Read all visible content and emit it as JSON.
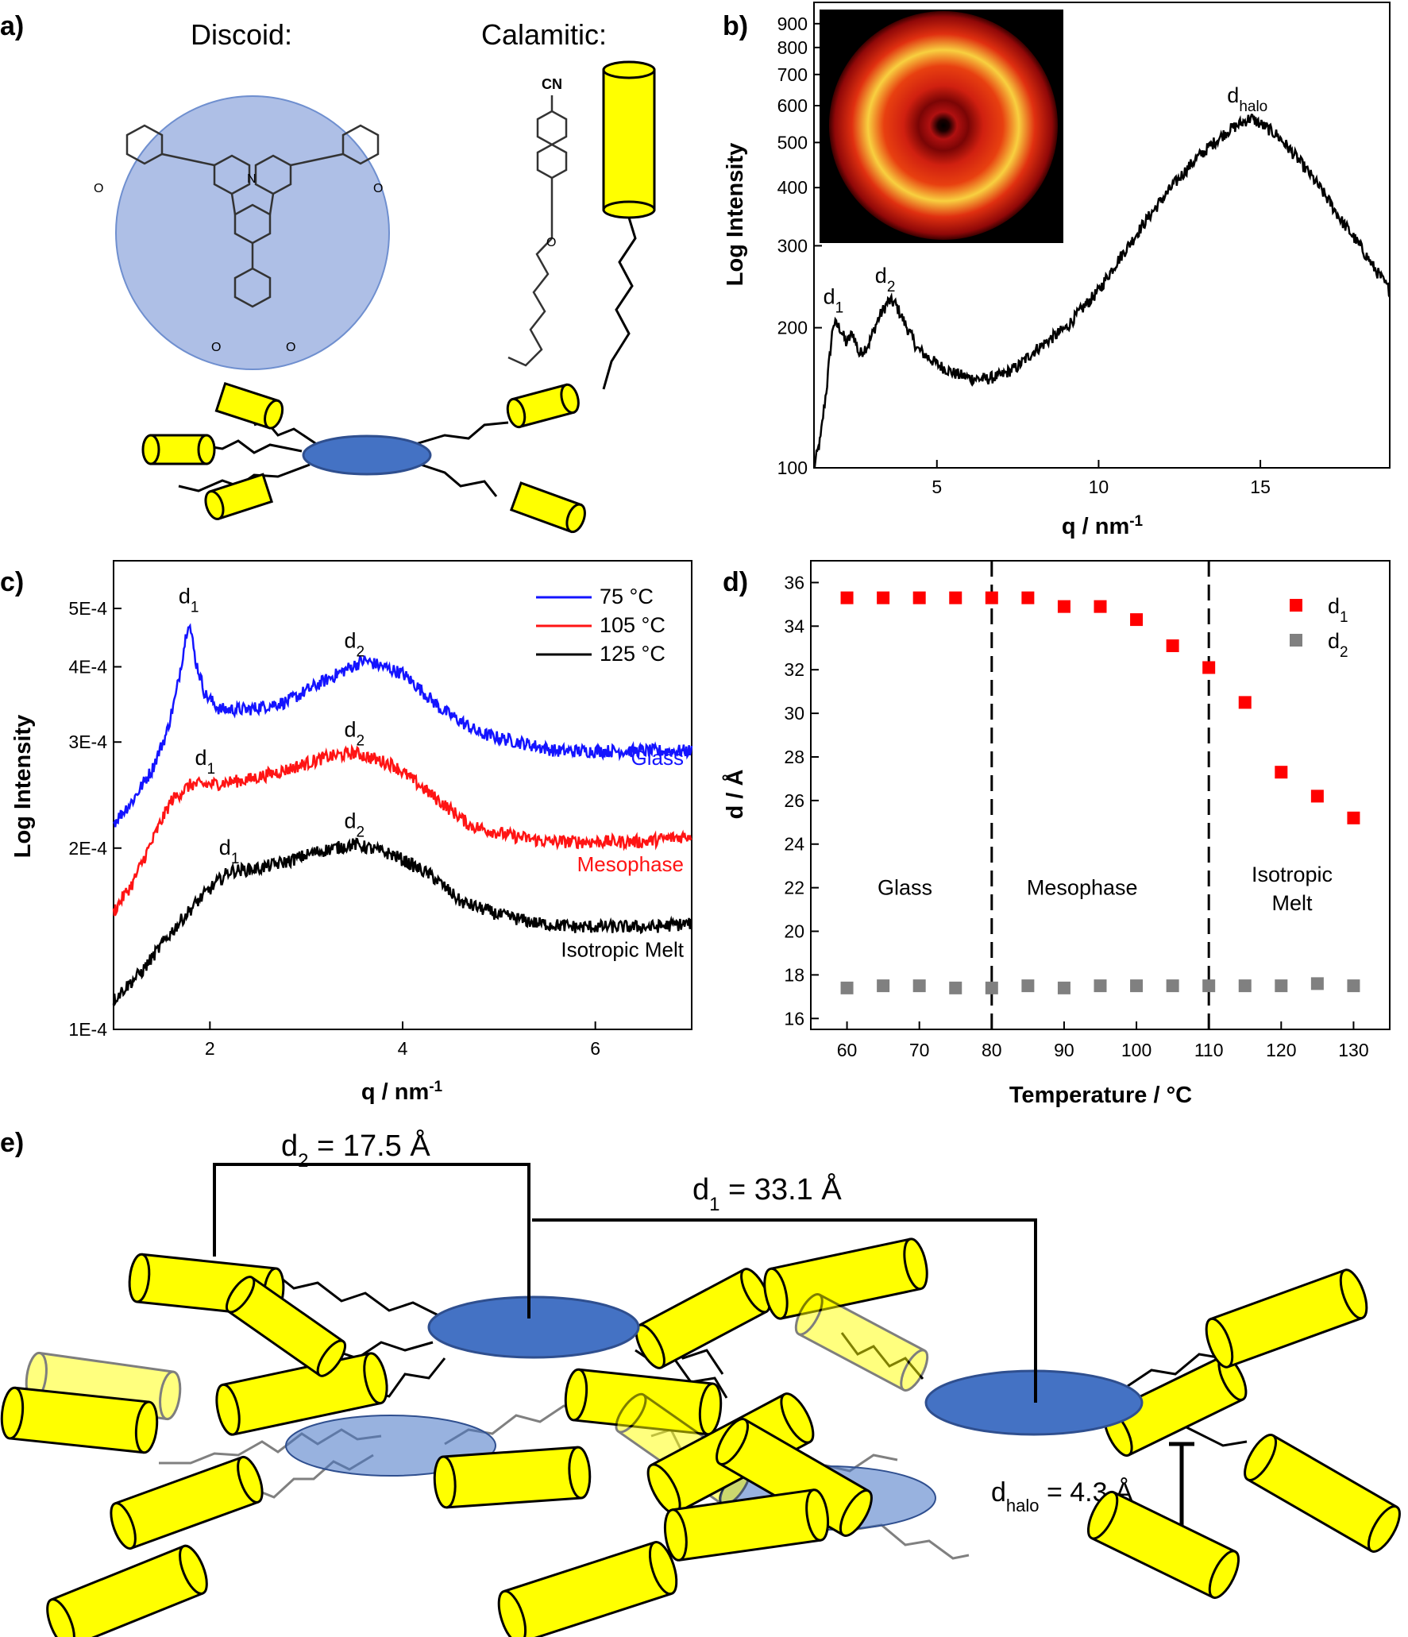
{
  "panels": {
    "a": {
      "label": "a)",
      "discoid_label": "Discoid:",
      "calamitic_label": "Calamitic:",
      "cn_label": "CN",
      "o_label": "O",
      "n_label": "N"
    },
    "e": {
      "label": "e)",
      "d2_annotation": "d",
      "d2_sub": "2",
      "d2_value": " = 17.5 Å",
      "d1_annotation": "d",
      "d1_sub": "1",
      "d1_value": " = 33.1 Å",
      "dhalo_annotation": "d",
      "dhalo_sub": "halo",
      "dhalo_value": " = 4.3 Å"
    }
  },
  "colors": {
    "blue_series": "#1414ff",
    "red_series": "#ff1414",
    "black_series": "#000000",
    "d1_marker": "#ff0000",
    "d2_marker": "#808080",
    "cylinder": "#ffff00",
    "disc": "#4472c4",
    "discoid_circle": "#aebfe6"
  },
  "chart_data": [
    {
      "id": "b",
      "panel_label": "b)",
      "type": "line",
      "xlabel": "q / nm",
      "xlabel_sup": "-1",
      "ylabel": "Log Intensity",
      "xlim": [
        1.2,
        19
      ],
      "ylim": [
        100,
        1000
      ],
      "yscale": "log",
      "xticks": [
        5,
        10,
        15
      ],
      "yticks": [
        100,
        200,
        300,
        400,
        500,
        600,
        700,
        800,
        900
      ],
      "inset": "2D scattering pattern",
      "series": [
        {
          "color": "#000000",
          "x": [
            1.2,
            1.4,
            1.6,
            1.8,
            2.0,
            2.2,
            2.4,
            2.6,
            2.9,
            3.2,
            3.5,
            3.7,
            4.0,
            4.4,
            5.0,
            5.5,
            6.0,
            6.5,
            7.0,
            7.5,
            8.0,
            9.0,
            10.0,
            11.0,
            12.0,
            13.0,
            14.0,
            14.7,
            15.5,
            16.5,
            17.5,
            18.5,
            19.0
          ],
          "y": [
            100,
            115,
            150,
            205,
            200,
            185,
            195,
            175,
            185,
            210,
            228,
            226,
            205,
            180,
            167,
            160,
            156,
            155,
            158,
            165,
            178,
            200,
            240,
            305,
            380,
            460,
            530,
            565,
            520,
            430,
            340,
            270,
            240
          ]
        }
      ],
      "annotations": [
        {
          "text": "d",
          "sub": "1",
          "x": 1.8,
          "y": 225
        },
        {
          "text": "d",
          "sub": "2",
          "x": 3.4,
          "y": 250
        },
        {
          "text": "d",
          "sub": "halo",
          "x": 14.6,
          "y": 610
        }
      ]
    },
    {
      "id": "c",
      "panel_label": "c)",
      "type": "line",
      "xlabel": "q / nm",
      "xlabel_sup": "-1",
      "ylabel": "Log Intensity",
      "xlim": [
        1,
        7
      ],
      "ylim": [
        0.0001,
        0.0006
      ],
      "yscale": "log",
      "xticks": [
        2,
        4,
        6
      ],
      "yticks": [
        0.0001,
        0.0002,
        0.0003,
        0.0004,
        0.0005
      ],
      "ytick_labels": [
        "1E-4",
        "2E-4",
        "3E-4",
        "4E-4",
        "5E-4"
      ],
      "legend_position": "top-right",
      "series": [
        {
          "name": "75 °C",
          "phase": "Glass",
          "color": "#1414ff",
          "x": [
            1.0,
            1.2,
            1.4,
            1.55,
            1.65,
            1.72,
            1.78,
            1.85,
            1.95,
            2.1,
            2.4,
            2.8,
            3.2,
            3.6,
            4.0,
            4.4,
            4.8,
            5.2,
            5.6,
            6.0,
            6.5,
            7.0
          ],
          "y": [
            0.00022,
            0.00024,
            0.00027,
            0.00031,
            0.00036,
            0.00042,
            0.00048,
            0.00041,
            0.00036,
            0.00034,
            0.00034,
            0.00035,
            0.00038,
            0.00041,
            0.00039,
            0.00034,
            0.00031,
            0.0003,
            0.00029,
            0.00029,
            0.00029,
            0.00029
          ]
        },
        {
          "name": "105 °C",
          "phase": "Mesophase",
          "color": "#ff1414",
          "x": [
            1.0,
            1.2,
            1.4,
            1.6,
            1.8,
            2.0,
            2.4,
            2.8,
            3.2,
            3.5,
            3.9,
            4.3,
            4.7,
            5.1,
            5.5,
            6.0,
            6.5,
            7.0
          ],
          "y": [
            0.000157,
            0.000175,
            0.000205,
            0.00024,
            0.000255,
            0.000255,
            0.00026,
            0.00027,
            0.000283,
            0.000288,
            0.000275,
            0.000245,
            0.000218,
            0.00021,
            0.000205,
            0.000205,
            0.000205,
            0.00021
          ]
        },
        {
          "name": "125 °C",
          "phase": "Isotropic Melt",
          "color": "#000000",
          "x": [
            1.0,
            1.3,
            1.6,
            1.9,
            2.2,
            2.5,
            2.8,
            3.1,
            3.5,
            3.9,
            4.3,
            4.6,
            5.0,
            5.4,
            5.8,
            6.2,
            6.6,
            7.0
          ],
          "y": [
            0.000112,
            0.000125,
            0.000145,
            0.000165,
            0.000183,
            0.000185,
            0.00019,
            0.000197,
            0.000203,
            0.000195,
            0.00018,
            0.000163,
            0.000155,
            0.00015,
            0.000148,
            0.000148,
            0.000148,
            0.00015
          ]
        }
      ],
      "annotations": [
        {
          "text": "d",
          "sub": "1",
          "x": 1.78,
          "y": 0.00051
        },
        {
          "text": "d",
          "sub": "2",
          "x": 3.5,
          "y": 0.00043
        },
        {
          "text": "d",
          "sub": "1",
          "x": 1.95,
          "y": 0.000275
        },
        {
          "text": "d",
          "sub": "2",
          "x": 3.5,
          "y": 0.000306
        },
        {
          "text": "d",
          "sub": "1",
          "x": 2.2,
          "y": 0.000195
        },
        {
          "text": "d",
          "sub": "2",
          "x": 3.5,
          "y": 0.000216
        }
      ]
    },
    {
      "id": "d",
      "panel_label": "d)",
      "type": "scatter",
      "xlabel": "Temperature / °C",
      "ylabel": "d / Å",
      "xlim": [
        55,
        135
      ],
      "ylim": [
        15.5,
        37
      ],
      "xticks": [
        60,
        70,
        80,
        90,
        100,
        110,
        120,
        130
      ],
      "yticks": [
        16,
        18,
        20,
        22,
        24,
        26,
        28,
        30,
        32,
        34,
        36
      ],
      "dashed_vlines": [
        80,
        110
      ],
      "regions": [
        "Glass",
        "Mesophase",
        "Isotropic",
        "Melt"
      ],
      "legend_position": "top-right",
      "series": [
        {
          "name": "d",
          "sub": "1",
          "color": "#ff0000",
          "x": [
            60,
            65,
            70,
            75,
            80,
            85,
            90,
            95,
            100,
            105,
            110,
            115,
            120,
            125,
            130
          ],
          "y": [
            35.3,
            35.3,
            35.3,
            35.3,
            35.3,
            35.3,
            34.9,
            34.9,
            34.3,
            33.1,
            32.1,
            30.5,
            27.3,
            26.2,
            25.2
          ]
        },
        {
          "name": "d",
          "sub": "2",
          "color": "#808080",
          "x": [
            60,
            65,
            70,
            75,
            80,
            85,
            90,
            95,
            100,
            105,
            110,
            115,
            120,
            125,
            130
          ],
          "y": [
            17.4,
            17.5,
            17.5,
            17.4,
            17.4,
            17.5,
            17.4,
            17.5,
            17.5,
            17.5,
            17.5,
            17.5,
            17.5,
            17.6,
            17.5
          ]
        }
      ]
    }
  ]
}
